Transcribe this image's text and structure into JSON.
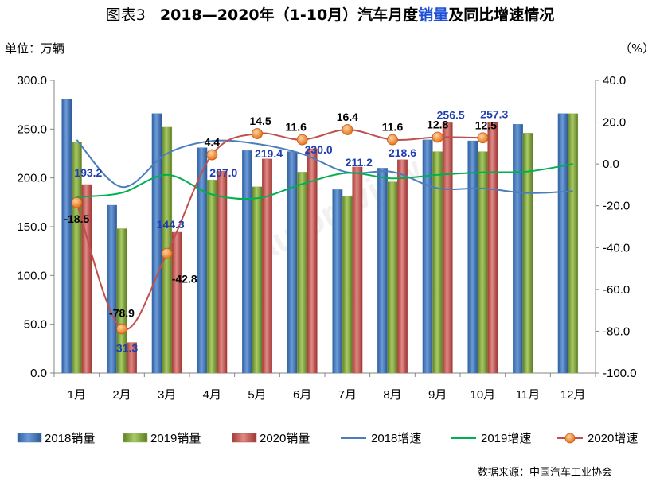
{
  "header": {
    "fig_label": "图表3",
    "title_main": "2018—2020年（1-10月）汽车月度",
    "title_hl": "销量",
    "title_end": "及同比增速情况"
  },
  "units": {
    "left": "单位：万辆",
    "right": "（%）"
  },
  "source": "数据来源：中国汽车工业协会",
  "watermark": "autoreview",
  "chart_data": {
    "type": "bar",
    "title": "2018—2020年（1-10月）汽车月度销量及同比增速情况",
    "categories": [
      "1月",
      "2月",
      "3月",
      "4月",
      "5月",
      "6月",
      "7月",
      "8月",
      "9月",
      "10月",
      "11月",
      "12月"
    ],
    "ylim": [
      0,
      300
    ],
    "y_ticks": [
      "0.0",
      "50.0",
      "100.0",
      "150.0",
      "200.0",
      "250.0",
      "300.0"
    ],
    "y2lim": [
      -100,
      40
    ],
    "y2_ticks": [
      "-100.0",
      "-80.0",
      "-60.0",
      "-40.0",
      "-20.0",
      "0.0",
      "20.0",
      "40.0"
    ],
    "grid": false,
    "legend_position": "bottom",
    "bar_series": [
      {
        "name": "2018销量",
        "color": "#4f81bd",
        "values": [
          281,
          172,
          266,
          231,
          228,
          227,
          188,
          210,
          239,
          238,
          255,
          266
        ]
      },
      {
        "name": "2019销量",
        "color": "#9bbb59",
        "values": [
          237,
          148,
          252,
          198,
          191,
          206,
          181,
          196,
          227,
          227,
          246,
          266
        ]
      },
      {
        "name": "2020销量",
        "color": "#c0504d",
        "values": [
          193.2,
          31.3,
          144.3,
          207.0,
          219.4,
          230.0,
          211.2,
          218.6,
          256.5,
          257.3,
          null,
          null
        ]
      }
    ],
    "bar_labels": {
      "series": "2020销量",
      "color": "#1f3fb0",
      "values": [
        "193.2",
        "31.3",
        "144.3",
        "207.0",
        "219.4",
        "230.0",
        "211.2",
        "218.6",
        "256.5",
        "257.3"
      ]
    },
    "line_series": [
      {
        "name": "2018增速",
        "color": "#4a7ebb",
        "values": [
          11.5,
          -11,
          5,
          11,
          9.6,
          4.8,
          -4,
          -3.8,
          -11.6,
          -11.7,
          -13.9,
          -13
        ]
      },
      {
        "name": "2019增速",
        "color": "#00b050",
        "values": [
          -15.8,
          -13.8,
          -5.2,
          -14.6,
          -16.4,
          -9.6,
          -4.3,
          -6.9,
          -5.2,
          -4,
          -3.6,
          0
        ]
      },
      {
        "name": "2020增速",
        "color": "#c0504d",
        "marker_color": "#f79646",
        "values": [
          -18.5,
          -78.9,
          -42.8,
          4.4,
          14.5,
          11.6,
          16.4,
          11.6,
          12.8,
          12.5,
          null,
          null
        ]
      }
    ],
    "line_labels": {
      "series": "2020增速",
      "values": [
        "-18.5",
        "-78.9",
        "-42.8",
        "4.4",
        "14.5",
        "11.6",
        "16.4",
        "11.6",
        "12.8",
        "12.5"
      ]
    }
  }
}
